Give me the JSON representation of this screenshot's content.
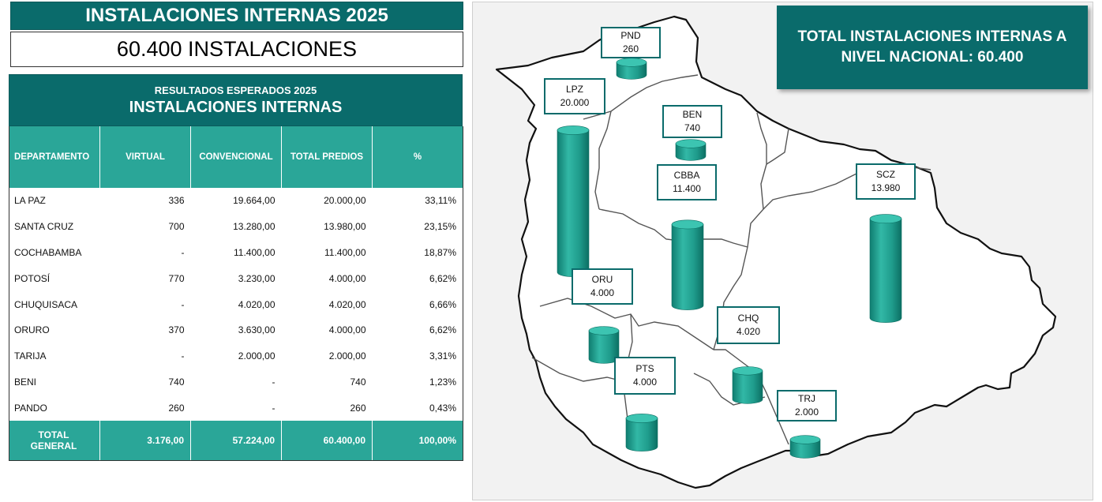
{
  "title": "INSTALACIONES INTERNAS 2025",
  "subtitle": "60.400 INSTALACIONES",
  "table": {
    "header_line1": "RESULTADOS ESPERADOS 2025",
    "header_line2": "INSTALACIONES INTERNAS",
    "columns": [
      "DEPARTAMENTO",
      "VIRTUAL",
      "CONVENCIONAL",
      "TOTAL PREDIOS",
      "%"
    ],
    "rows": [
      [
        "LA PAZ",
        "336",
        "19.664,00",
        "20.000,00",
        "33,11%"
      ],
      [
        "SANTA CRUZ",
        "700",
        "13.280,00",
        "13.980,00",
        "23,15%"
      ],
      [
        "COCHABAMBA",
        "-",
        "11.400,00",
        "11.400,00",
        "18,87%"
      ],
      [
        "POTOSÍ",
        "770",
        "3.230,00",
        "4.000,00",
        "6,62%"
      ],
      [
        "CHUQUISACA",
        "-",
        "4.020,00",
        "4.020,00",
        "6,66%"
      ],
      [
        "ORURO",
        "370",
        "3.630,00",
        "4.000,00",
        "6,62%"
      ],
      [
        "TARIJA",
        "-",
        "2.000,00",
        "2.000,00",
        "3,31%"
      ],
      [
        "BENI",
        "740",
        "-",
        "740",
        "1,23%"
      ],
      [
        "PANDO",
        "260",
        "-",
        "260",
        "0,43%"
      ]
    ],
    "total": [
      "TOTAL GENERAL",
      "3.176,00",
      "57.224,00",
      "60.400,00",
      "100,00%"
    ]
  },
  "national_total": "TOTAL INSTALACIONES INTERNAS A NIVEL NACIONAL: 60.400",
  "colors": {
    "primary": "#0a6b6b",
    "accent": "#2aa698",
    "cylinder": "#1f9c8c",
    "map_bg": "#f2f2f2"
  },
  "chart_data": {
    "type": "bar",
    "categories": [
      "PND",
      "LPZ",
      "BEN",
      "CBBA",
      "SCZ",
      "ORU",
      "CHQ",
      "PTS",
      "TRJ"
    ],
    "value_labels": [
      "260",
      "20.000",
      "740",
      "11.400",
      "13.980",
      "4.000",
      "4.020",
      "4.000",
      "2.000"
    ],
    "values": [
      260,
      20000,
      740,
      11400,
      13980,
      4000,
      4020,
      4000,
      2000
    ]
  }
}
